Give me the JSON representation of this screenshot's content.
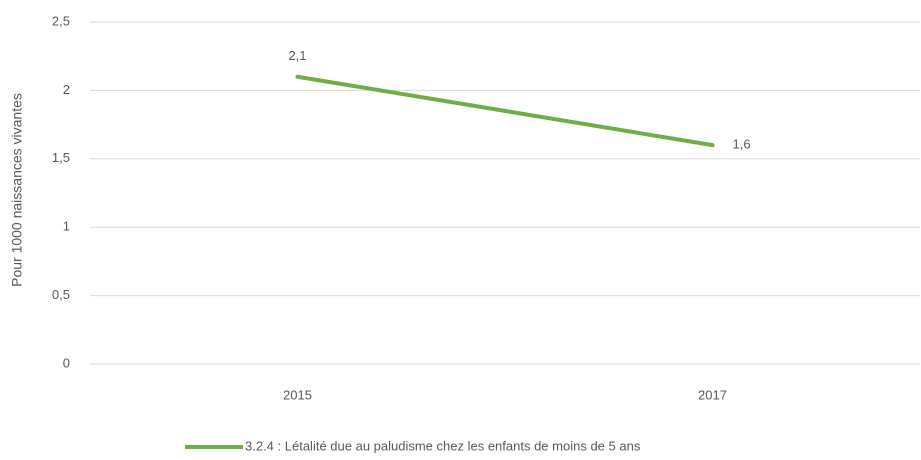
{
  "chart_data": {
    "type": "line",
    "y_label": "Pour 1000 naissances vivantes",
    "categories": [
      "2015",
      "2017"
    ],
    "series": [
      {
        "name": "3.2.4 : Létalité due au paludisme chez les enfants de moins de 5 ans",
        "color": "#70ad47",
        "values": [
          2.1,
          1.6
        ],
        "value_labels": [
          "2,1",
          "1,6"
        ]
      }
    ],
    "ylim": [
      0,
      2.5
    ],
    "yticks": [
      0,
      {
        "value": 0.5,
        "label": "0,5"
      },
      1,
      {
        "value": 1.5,
        "label": "1,5"
      },
      2,
      {
        "value": 2.5,
        "label": "2,5"
      }
    ],
    "grid": true,
    "legend": "bottom"
  }
}
